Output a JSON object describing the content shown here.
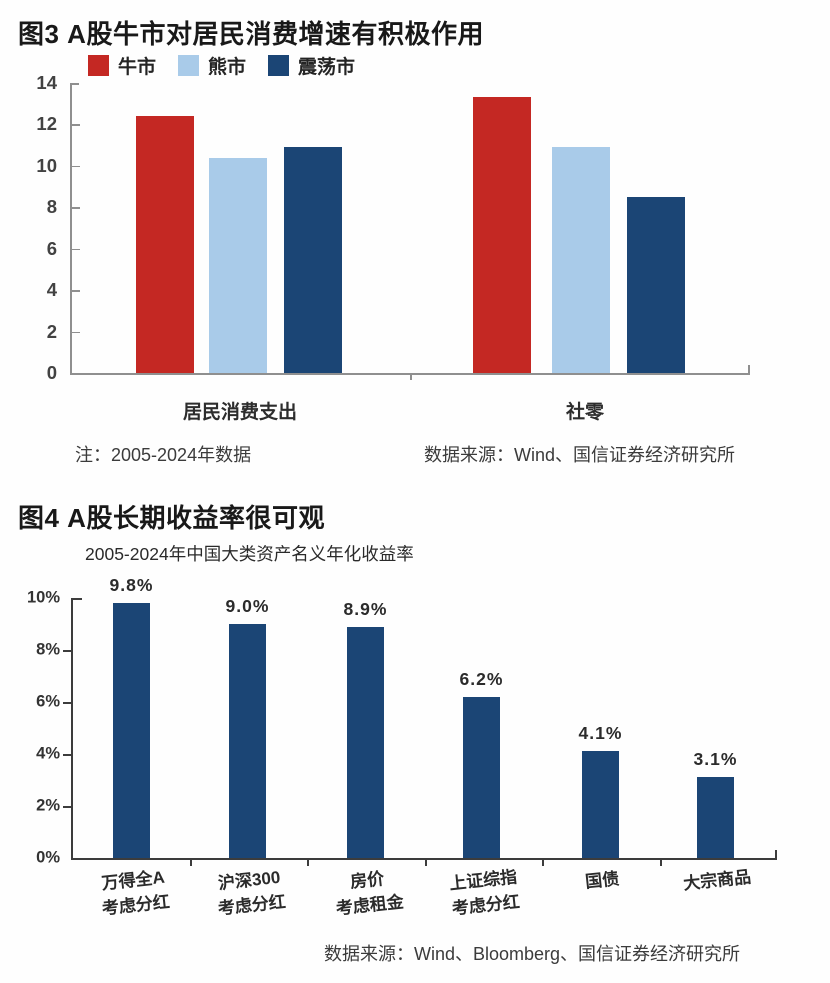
{
  "figure3": {
    "title": "图3 A股牛市对居民消费增速有积极作用",
    "note": "注：2005-2024年数据",
    "source": "数据来源：Wind、国信证券经济研究所"
  },
  "figure4": {
    "title": "图4 A股长期收益率很可观",
    "subtitle": "2005-2024年中国大类资产名义年化收益率",
    "source": "数据来源：Wind、Bloomberg、国信证券经济研究所"
  },
  "chart_data": [
    {
      "type": "bar",
      "title": "图3 A股牛市对居民消费增速有积极作用",
      "categories": [
        "居民消费支出",
        "社零"
      ],
      "series": [
        {
          "name": "牛市",
          "color": "#c42823",
          "values": [
            12.4,
            13.3
          ]
        },
        {
          "name": "熊市",
          "color": "#a9cbe9",
          "values": [
            10.4,
            10.9
          ]
        },
        {
          "name": "震荡市",
          "color": "#1b4575",
          "values": [
            10.9,
            8.5
          ]
        }
      ],
      "ylim": [
        0,
        14
      ],
      "yticks": [
        0,
        2,
        4,
        6,
        8,
        10,
        12,
        14
      ],
      "legend_position": "top",
      "grid": false,
      "axis_color": "#8f8f8f"
    },
    {
      "type": "bar",
      "title": "图4 A股长期收益率很可观",
      "subtitle": "2005-2024年中国大类资产名义年化收益率",
      "categories": [
        [
          "万得全A",
          "考虑分红"
        ],
        [
          "沪深300",
          "考虑分红"
        ],
        [
          "房价",
          "考虑租金"
        ],
        [
          "上证综指",
          "考虑分红"
        ],
        [
          "国债"
        ],
        [
          "大宗商品"
        ]
      ],
      "values": [
        9.8,
        9.0,
        8.9,
        6.2,
        4.1,
        3.1
      ],
      "labels": [
        "9.8%",
        "9.0%",
        "8.9%",
        "6.2%",
        "4.1%",
        "3.1%"
      ],
      "bar_color": "#1b4575",
      "ylim": [
        0,
        10
      ],
      "yticks": [
        "0%",
        "2%",
        "4%",
        "6%",
        "8%",
        "10%"
      ],
      "ytick_values": [
        0,
        2,
        4,
        6,
        8,
        10
      ],
      "grid": false,
      "axis_color": "#3c3c3c"
    }
  ]
}
